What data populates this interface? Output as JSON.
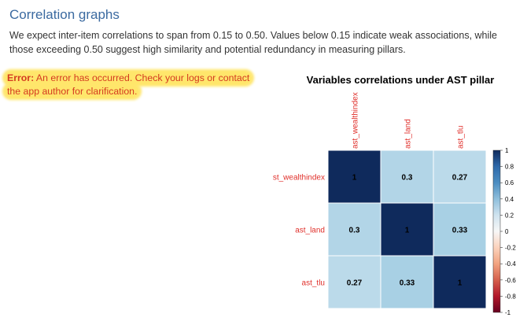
{
  "section": {
    "title": "Correlation graphs",
    "description": "We expect inter-item correlations to span from 0.15 to 0.50. Values below 0.15 indicate weak associations, while those exceeding 0.50 suggest high similarity and potential redundancy in measuring pillars."
  },
  "error": {
    "label": "Error:",
    "message": "An error has occurred. Check your logs or contact the app author for clarification."
  },
  "chart_data": {
    "type": "heatmap",
    "title": "Variables correlations under AST pillar",
    "row_labels": [
      "ast_wealthindex",
      "ast_land",
      "ast_tlu"
    ],
    "row_labels_display": [
      "st_wealthindex",
      "ast_land",
      "ast_tlu"
    ],
    "col_labels": [
      "ast_wealthindex",
      "ast_land",
      "ast_tlu"
    ],
    "values": [
      [
        1,
        0.3,
        0.27
      ],
      [
        0.3,
        1,
        0.33
      ],
      [
        0.27,
        0.33,
        1
      ]
    ],
    "colorbar_ticks": [
      "1",
      "0.8",
      "0.6",
      "0.4",
      "0.2",
      "0",
      "-0.2",
      "-0.4",
      "-0.6",
      "-0.8",
      "-1"
    ],
    "colorbar_range": [
      -1,
      1
    ],
    "colors": {
      "label": "#e0302b",
      "strong_positive": "#0f2a5c",
      "negative": "#67001f"
    }
  }
}
